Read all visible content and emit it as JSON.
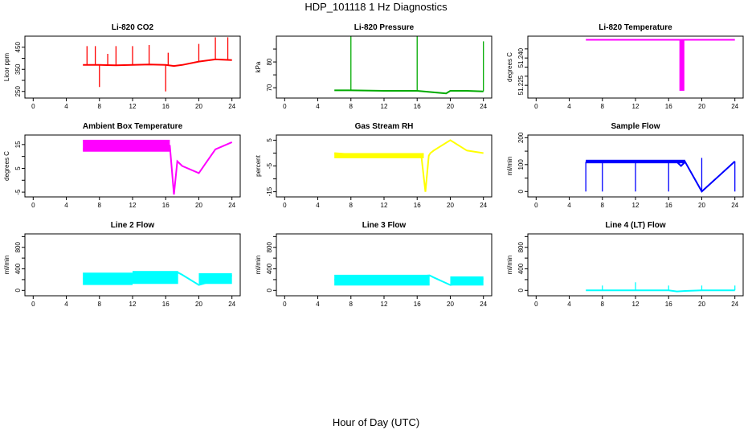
{
  "figure": {
    "title": "HDP_101118  1 Hz Diagnostics",
    "xlabel": "Hour of Day (UTC)"
  },
  "chart_data": [
    {
      "id": "co2",
      "type": "line",
      "title": "Li-820 CO2",
      "ylabel": "Licor ppm",
      "color": "#ff0000",
      "xlim": [
        -1,
        25
      ],
      "ylim": [
        220,
        500
      ],
      "xticks": [
        0,
        4,
        8,
        12,
        16,
        20,
        24
      ],
      "yticks": [
        250,
        350,
        450
      ],
      "yticklabels": [
        "250",
        "350",
        "450"
      ],
      "extra_yticks": [
        300,
        400
      ],
      "x": [
        6,
        8,
        10,
        12,
        14,
        16,
        17,
        18,
        20,
        22,
        24
      ],
      "y": [
        370,
        370,
        368,
        370,
        372,
        370,
        365,
        370,
        385,
        395,
        392
      ],
      "spikes": [
        {
          "x": 6.5,
          "y": 455
        },
        {
          "x": 7.5,
          "y": 455
        },
        {
          "x": 8.0,
          "y": 270
        },
        {
          "x": 9.0,
          "y": 420
        },
        {
          "x": 10.0,
          "y": 455
        },
        {
          "x": 12.0,
          "y": 455
        },
        {
          "x": 14.0,
          "y": 460
        },
        {
          "x": 16.0,
          "y": 250
        },
        {
          "x": 16.3,
          "y": 425
        },
        {
          "x": 20.0,
          "y": 465
        },
        {
          "x": 22.0,
          "y": 495
        },
        {
          "x": 23.5,
          "y": 495
        }
      ]
    },
    {
      "id": "pressure",
      "type": "line",
      "title": "Li-820 Pressure",
      "ylabel": "kPa",
      "color": "#00aa00",
      "xlim": [
        -1,
        25
      ],
      "ylim": [
        66,
        90
      ],
      "xticks": [
        0,
        4,
        8,
        12,
        16,
        20,
        24
      ],
      "yticks": [
        70,
        80
      ],
      "yticklabels": [
        "70",
        "80"
      ],
      "extra_yticks": [
        75,
        85
      ],
      "x": [
        6,
        8,
        12,
        16,
        18,
        19.5,
        20,
        22,
        24
      ],
      "y": [
        69,
        69,
        68.8,
        68.8,
        68.2,
        67.8,
        68.8,
        68.8,
        68.6
      ],
      "spikes": [
        {
          "x": 8,
          "y": 90
        },
        {
          "x": 16,
          "y": 90
        },
        {
          "x": 24,
          "y": 88
        }
      ]
    },
    {
      "id": "temperature",
      "type": "line",
      "title": "Li-820 Temperature",
      "ylabel": "degrees C",
      "color": "#ff00ff",
      "xlim": [
        -1,
        25
      ],
      "ylim": [
        51.218,
        51.252
      ],
      "xticks": [
        0,
        4,
        8,
        12,
        16,
        20,
        24
      ],
      "yticks": [
        51.225,
        51.24
      ],
      "yticklabels": [
        "51.225",
        "51.240"
      ],
      "extra_yticks": [
        51.23,
        51.235,
        51.245
      ],
      "x": [
        6,
        12,
        17.5,
        18,
        24
      ],
      "y": [
        51.25,
        51.25,
        51.25,
        51.25,
        51.25
      ],
      "band": {
        "x0": 17.3,
        "x1": 17.9,
        "ymin": 51.222,
        "ymax": 51.25
      }
    },
    {
      "id": "ambient",
      "type": "line",
      "title": "Ambient Box Temperature",
      "ylabel": "degrees C",
      "color": "#ff00ff",
      "xlim": [
        -1,
        25
      ],
      "ylim": [
        -7,
        19
      ],
      "xticks": [
        0,
        4,
        8,
        12,
        16,
        20,
        24
      ],
      "yticks": [
        -5,
        5,
        15
      ],
      "yticklabels": [
        "-5",
        "5",
        "15"
      ],
      "extra_yticks": [
        0,
        10
      ],
      "x": [
        6,
        10,
        14,
        16,
        16.5,
        17.0,
        17.4,
        18,
        20,
        22,
        24
      ],
      "y": [
        13,
        14,
        16.5,
        15,
        14.5,
        -6,
        8,
        6,
        3,
        13,
        16
      ],
      "band": {
        "x0": 6,
        "x1": 16.5,
        "ymin": 12,
        "ymax": 17
      }
    },
    {
      "id": "rh",
      "type": "line",
      "title": "Gas Stream RH",
      "ylabel": "percent",
      "color": "#ffff00",
      "xlim": [
        -1,
        25
      ],
      "ylim": [
        -17,
        7
      ],
      "xticks": [
        0,
        4,
        8,
        12,
        16,
        20,
        24
      ],
      "yticks": [
        -15,
        -5,
        5
      ],
      "yticklabels": [
        "-15",
        "-5",
        "5"
      ],
      "extra_yticks": [
        -10,
        0
      ],
      "x": [
        6,
        10,
        16.5,
        17.0,
        17.4,
        17.6,
        18,
        20,
        22,
        24
      ],
      "y": [
        0,
        -1,
        -1,
        -15,
        -1,
        0,
        1,
        5,
        1,
        0
      ],
      "band": {
        "x0": 6,
        "x1": 16.8,
        "ymin": -2,
        "ymax": 0
      }
    },
    {
      "id": "sampleflow",
      "type": "line",
      "title": "Sample Flow",
      "ylabel": "ml/min",
      "color": "#0000ff",
      "xlim": [
        -1,
        25
      ],
      "ylim": [
        -20,
        210
      ],
      "xticks": [
        0,
        4,
        8,
        12,
        16,
        20,
        24
      ],
      "yticks": [
        0,
        100,
        200
      ],
      "yticklabels": [
        "0",
        "100",
        "200"
      ],
      "extra_yticks": [
        50,
        150
      ],
      "x": [
        6,
        8,
        12,
        16,
        17,
        17.5,
        18,
        20,
        24
      ],
      "y": [
        110,
        110,
        112,
        110,
        110,
        95,
        110,
        0,
        112
      ],
      "band": {
        "x0": 6,
        "x1": 18,
        "ymin": 105,
        "ymax": 118
      },
      "spikes": [
        {
          "x": 6,
          "y": 0
        },
        {
          "x": 8,
          "y": 0
        },
        {
          "x": 12,
          "y": 0
        },
        {
          "x": 16,
          "y": 0
        },
        {
          "x": 20,
          "y": 125
        },
        {
          "x": 24,
          "y": 0
        }
      ]
    },
    {
      "id": "line2",
      "type": "line",
      "title": "Line 2 Flow",
      "ylabel": "ml/min",
      "color": "#00ffff",
      "xlim": [
        -1,
        25
      ],
      "ylim": [
        -100,
        1050
      ],
      "xticks": [
        0,
        4,
        8,
        12,
        16,
        20,
        24
      ],
      "yticks": [
        0,
        400,
        800
      ],
      "yticklabels": [
        "0",
        "400",
        "800"
      ],
      "extra_yticks": [
        200,
        600,
        1000
      ],
      "x": [
        6,
        12,
        17.5,
        18,
        20,
        24
      ],
      "y": [
        220,
        220,
        330,
        290,
        100,
        280
      ],
      "bands": [
        {
          "x0": 6,
          "x1": 12,
          "ymin": 100,
          "ymax": 330
        },
        {
          "x0": 12,
          "x1": 17.5,
          "ymin": 120,
          "ymax": 360
        },
        {
          "x0": 20,
          "x1": 24,
          "ymin": 120,
          "ymax": 320
        }
      ]
    },
    {
      "id": "line3",
      "type": "line",
      "title": "Line 3 Flow",
      "ylabel": "ml/min",
      "color": "#00ffff",
      "xlim": [
        -1,
        25
      ],
      "ylim": [
        -100,
        1050
      ],
      "xticks": [
        0,
        4,
        8,
        12,
        16,
        20,
        24
      ],
      "yticks": [
        0,
        400,
        800
      ],
      "yticklabels": [
        "0",
        "400",
        "800"
      ],
      "extra_yticks": [
        200,
        600,
        1000
      ],
      "x": [
        6,
        12,
        17.5,
        18,
        20,
        24
      ],
      "y": [
        200,
        200,
        280,
        240,
        100,
        220
      ],
      "bands": [
        {
          "x0": 6,
          "x1": 17.5,
          "ymin": 90,
          "ymax": 290
        },
        {
          "x0": 20,
          "x1": 24,
          "ymin": 90,
          "ymax": 260
        }
      ]
    },
    {
      "id": "line4",
      "type": "line",
      "title": "Line 4 (LT) Flow",
      "ylabel": "ml/min",
      "color": "#00ffff",
      "xlim": [
        -1,
        25
      ],
      "ylim": [
        -100,
        1050
      ],
      "xticks": [
        0,
        4,
        8,
        12,
        16,
        20,
        24
      ],
      "yticks": [
        0,
        400,
        800
      ],
      "yticklabels": [
        "0",
        "400",
        "800"
      ],
      "extra_yticks": [
        200,
        600,
        1000
      ],
      "x": [
        6,
        12,
        16,
        17,
        18,
        20,
        24
      ],
      "y": [
        0,
        0,
        0,
        -20,
        -10,
        0,
        0
      ],
      "spikes": [
        {
          "x": 8,
          "y": 90
        },
        {
          "x": 12,
          "y": 150
        },
        {
          "x": 16,
          "y": 90
        },
        {
          "x": 20,
          "y": 90
        },
        {
          "x": 24,
          "y": 90
        }
      ]
    }
  ]
}
